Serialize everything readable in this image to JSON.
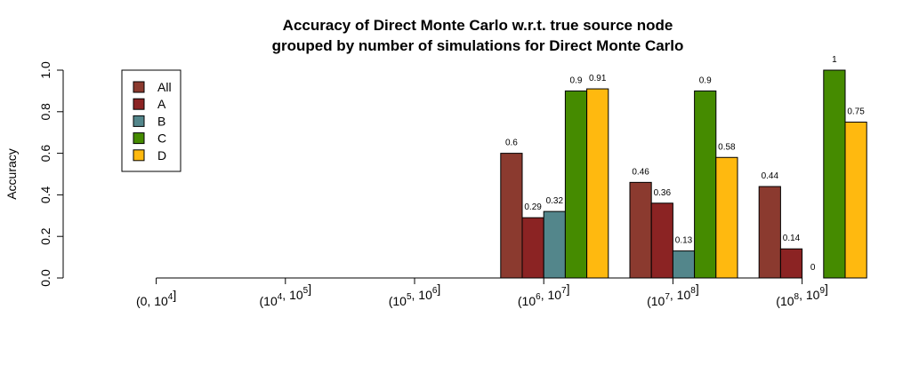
{
  "chart_data": {
    "type": "bar",
    "title": [
      "Accuracy of Direct Monte Carlo w.r.t. true source node",
      "grouped by number of simulations for Direct Monte Carlo"
    ],
    "xlabel": "",
    "ylabel": "Accuracy",
    "ylim": [
      0,
      1
    ],
    "yticks": [
      "0.0",
      "0.2",
      "0.4",
      "0.6",
      "0.8",
      "1.0"
    ],
    "categories": [
      {
        "open": "(",
        "lo_base": "",
        "lo_exp": "",
        "lo_plain": "0",
        "hi_base": "10",
        "hi_exp": "4",
        "close": "]"
      },
      {
        "open": "(",
        "lo_base": "10",
        "lo_exp": "4",
        "lo_plain": "",
        "hi_base": "10",
        "hi_exp": "5",
        "close": "]"
      },
      {
        "open": "(",
        "lo_base": "10",
        "lo_exp": "5",
        "lo_plain": "",
        "hi_base": "10",
        "hi_exp": "6",
        "close": "]"
      },
      {
        "open": "(",
        "lo_base": "10",
        "lo_exp": "6",
        "lo_plain": "",
        "hi_base": "10",
        "hi_exp": "7",
        "close": "]"
      },
      {
        "open": "(",
        "lo_base": "10",
        "lo_exp": "7",
        "lo_plain": "",
        "hi_base": "10",
        "hi_exp": "8",
        "close": "]"
      },
      {
        "open": "(",
        "lo_base": "10",
        "lo_exp": "8",
        "lo_plain": "",
        "hi_base": "10",
        "hi_exp": "9",
        "close": "]"
      }
    ],
    "series": [
      {
        "name": "All",
        "color": "#8B3A2F",
        "values": [
          null,
          null,
          null,
          0.6,
          0.46,
          0.44
        ],
        "labels": [
          "",
          "",
          "",
          "0.6",
          "0.46",
          "0.44"
        ]
      },
      {
        "name": "A",
        "color": "#8B2323",
        "values": [
          null,
          null,
          null,
          0.29,
          0.36,
          0.14
        ],
        "labels": [
          "",
          "",
          "",
          "0.29",
          "0.36",
          "0.14"
        ]
      },
      {
        "name": "B",
        "color": "#53868B",
        "values": [
          null,
          null,
          null,
          0.32,
          0.13,
          0
        ],
        "labels": [
          "",
          "",
          "",
          "0.32",
          "0.13",
          "0"
        ]
      },
      {
        "name": "C",
        "color": "#458B00",
        "values": [
          null,
          null,
          null,
          0.9,
          0.9,
          1
        ],
        "labels": [
          "",
          "",
          "",
          "0.9",
          "0.9",
          "1"
        ]
      },
      {
        "name": "D",
        "color": "#FFB90F",
        "values": [
          null,
          null,
          null,
          0.91,
          0.58,
          0.75
        ],
        "labels": [
          "",
          "",
          "",
          "0.91",
          "0.58",
          "0.75"
        ]
      }
    ],
    "legend": "top-left",
    "grid": false
  }
}
